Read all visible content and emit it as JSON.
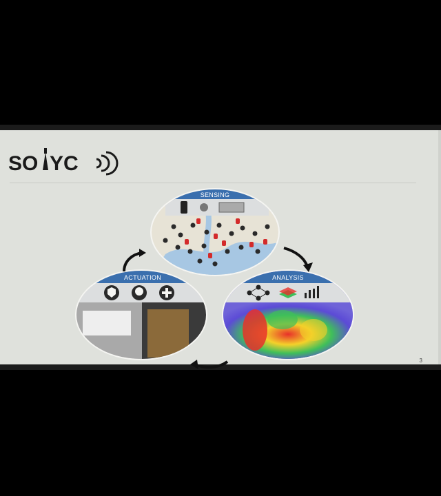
{
  "brand": {
    "logo_text": "SONYC"
  },
  "slide": {
    "page_number": "3"
  },
  "cycle": {
    "sensing_label": "SENSING",
    "analysis_label": "ANALYSIS",
    "actuation_label": "ACTUATION"
  },
  "colors": {
    "header_band": "#3a6fae",
    "map_land": "#e7e3d6",
    "map_water": "#a7c7e3",
    "marker_red": "#d32a2a",
    "marker_dark": "#2a2a2a",
    "heat_blue": "#5c4bd6",
    "heat_red": "#e8312a"
  },
  "icons": [
    "phone-icon",
    "microphone-icon",
    "sensor-board-icon",
    "network-icon",
    "layers-icon",
    "chart-icon",
    "police-badge-icon",
    "tree-icon",
    "health-cross-icon",
    "cycle-arrow-icon"
  ]
}
